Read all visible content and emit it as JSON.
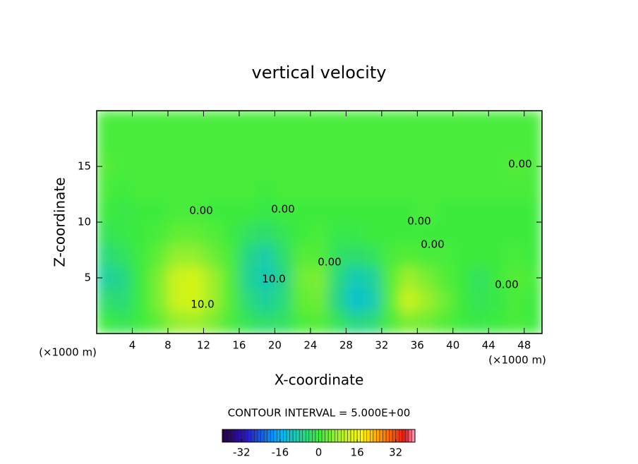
{
  "chart_data": {
    "type": "heatmap",
    "title": "vertical velocity",
    "xlabel": "X-coordinate",
    "ylabel": "Z-coordinate",
    "x_unit": "(×1000 m)",
    "y_unit": "(×1000 m)",
    "footer": "CONTOUR INTERVAL = 5.000E+00",
    "annotations": [
      "0.00",
      "10.0",
      "0.00",
      "10.0",
      "0.00",
      "0.00",
      "0.00",
      "0.00",
      "0.00"
    ],
    "xlim": [
      0,
      50
    ],
    "ylim": [
      0,
      20
    ],
    "xticks": [
      4,
      8,
      12,
      16,
      20,
      24,
      28,
      32,
      36,
      40,
      44,
      48
    ],
    "yticks": [
      5,
      10,
      15
    ],
    "x": [
      1,
      3,
      5,
      7,
      9,
      11,
      13,
      15,
      17,
      19,
      21,
      23,
      25,
      27,
      29,
      31,
      33,
      35,
      37,
      39,
      41,
      43,
      45,
      47,
      49
    ],
    "z": [
      1,
      3,
      5,
      7,
      9,
      11,
      13,
      15,
      17,
      19
    ],
    "values": [
      [
        0,
        -2,
        0,
        3,
        7,
        8,
        5,
        1,
        -2,
        -4,
        -3,
        1,
        2,
        -2,
        -6,
        -5,
        1,
        5,
        4,
        2,
        0,
        -1,
        0,
        1,
        0
      ],
      [
        -4,
        -5,
        0,
        5,
        12,
        13,
        8,
        2,
        -5,
        -8,
        -5,
        3,
        4,
        -6,
        -12,
        -10,
        2,
        12,
        8,
        4,
        0,
        -2,
        -1,
        1,
        0
      ],
      [
        -8,
        -6,
        0,
        5,
        12,
        13,
        8,
        2,
        -7,
        -10,
        -6,
        4,
        5,
        -5,
        -10,
        -8,
        2,
        8,
        5,
        2,
        0,
        -3,
        0,
        2,
        1
      ],
      [
        -5,
        -3,
        0,
        3,
        7,
        7,
        4,
        1,
        -6,
        -9,
        -4,
        2,
        2,
        -3,
        -4,
        -3,
        1,
        2,
        1,
        1,
        0,
        0,
        0,
        1,
        0
      ],
      [
        -2,
        -1,
        0,
        1,
        3,
        3,
        2,
        0,
        -3,
        -4,
        -2,
        0,
        1,
        -1,
        -1,
        0,
        0,
        0,
        0,
        0,
        0,
        0,
        0,
        0,
        0
      ],
      [
        0,
        -1,
        0,
        0,
        1,
        1,
        0,
        0,
        0,
        -1,
        0,
        0,
        0,
        0,
        0,
        0,
        0,
        0,
        1,
        0,
        0,
        0,
        0,
        0,
        0
      ],
      [
        1,
        0,
        1,
        1,
        1,
        1,
        1,
        1,
        1,
        0,
        1,
        1,
        1,
        1,
        1,
        1,
        1,
        1,
        1,
        1,
        1,
        1,
        1,
        1,
        1
      ],
      [
        2,
        1,
        1,
        1,
        1,
        1,
        1,
        1,
        1,
        1,
        1,
        1,
        1,
        1,
        1,
        1,
        1,
        1,
        1,
        1,
        1,
        1,
        1,
        2,
        1
      ],
      [
        1,
        1,
        1,
        1,
        1,
        1,
        1,
        1,
        1,
        1,
        1,
        1,
        1,
        1,
        1,
        1,
        1,
        1,
        1,
        1,
        1,
        1,
        1,
        1,
        1
      ],
      [
        1,
        1,
        1,
        1,
        1,
        1,
        1,
        1,
        1,
        1,
        1,
        1,
        1,
        1,
        1,
        1,
        1,
        1,
        1,
        1,
        1,
        1,
        1,
        1,
        1
      ]
    ],
    "clim": [
      -40,
      40
    ],
    "cticks": [
      -32,
      -16,
      0,
      16,
      32
    ]
  }
}
